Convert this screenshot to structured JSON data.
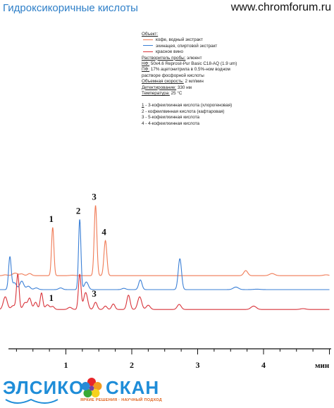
{
  "header": {
    "title": "Гидроксикоричные кислоты",
    "site": "www.chromforum.ru"
  },
  "info": {
    "object_label": "Объект:",
    "legend": [
      {
        "label": "кофе, водный экстракт",
        "color": "#f07a55"
      },
      {
        "label": "эхинацея, спиртовой экстракт",
        "color": "#3a7fd6"
      },
      {
        "label": "красное вино",
        "color": "#d8333a"
      }
    ],
    "solvent_label": "Растворитель пробы:",
    "solvent_value": " элюент",
    "column_label": "НФ:",
    "column_value": " 50x4.6 Reprosil-Pur Basic C18-AQ  (1.9 um)",
    "mobile_label": "ПФ:",
    "mobile_value": " 17% ацетонитрила в 0.5%-ном водном",
    "mobile_value2": "растворе фосфорной кислоты",
    "flow_label": "Объемная скорость:",
    "flow_value": " 2 мл/мин",
    "detect_label": "Детектирование:",
    "detect_value": " 330 нм",
    "temp_label": "Температура:",
    "temp_value": " 25 °С",
    "peaks": [
      {
        "num": "1",
        "text": " - 3-кофеилхинная кислота (хлорогеновая)"
      },
      {
        "num": "2",
        "text": " - кофеилвинная кислота (кафтаровая)"
      },
      {
        "num": "3",
        "text": " - 5-кофеилхинная кислота"
      },
      {
        "num": "4",
        "text": " - 4-кофеилхинная кислота"
      }
    ]
  },
  "chart_data": {
    "type": "line",
    "xlabel": "мин",
    "xlim": [
      0,
      5
    ],
    "x_ticks": [
      "1",
      "2",
      "3",
      "4"
    ],
    "peak_labels": [
      {
        "text": "1",
        "x": 0.8,
        "series": "кофе, водный экстракт"
      },
      {
        "text": "2",
        "x": 1.21,
        "series": "эхинацея, спиртовой экстракт"
      },
      {
        "text": "3",
        "x": 1.45,
        "series": "кофе, водный экстракт"
      },
      {
        "text": "4",
        "x": 1.6,
        "series": "кофе, водный экстракт"
      },
      {
        "text": "1",
        "x": 0.8,
        "series": "красное вино"
      },
      {
        "text": "3",
        "x": 1.45,
        "series": "красное вино"
      }
    ],
    "series": [
      {
        "name": "кофе, водный экстракт",
        "color": "#f07a55",
        "baseline": 3.3,
        "peaks": [
          [
            0.08,
            0.2,
            0.03
          ],
          [
            0.23,
            0.6,
            0.04
          ],
          [
            0.33,
            0.4,
            0.03
          ],
          [
            0.45,
            0.5,
            0.03
          ],
          [
            0.8,
            11.4,
            0.018
          ],
          [
            1.1,
            0.1,
            0.04
          ],
          [
            1.45,
            16.6,
            0.02
          ],
          [
            1.6,
            8.3,
            0.022
          ],
          [
            3.73,
            1.2,
            0.03
          ],
          [
            4.13,
            0.5,
            0.04
          ],
          [
            4.95,
            0.2,
            0.04
          ]
        ]
      },
      {
        "name": "эхинацея, спиртовой экстракт",
        "color": "#3a7fd6",
        "baseline": 0,
        "peaks": [
          [
            0.15,
            7.7,
            0.02
          ],
          [
            0.22,
            1.6,
            0.03
          ],
          [
            0.33,
            2.0,
            0.03
          ],
          [
            0.43,
            0.8,
            0.03
          ],
          [
            0.55,
            0.4,
            0.03
          ],
          [
            0.92,
            0.4,
            0.03
          ],
          [
            1.21,
            16.6,
            0.018
          ],
          [
            1.31,
            1.8,
            0.03
          ],
          [
            1.88,
            0.3,
            0.03
          ],
          [
            2.13,
            2.3,
            0.025
          ],
          [
            2.73,
            7.3,
            0.025
          ],
          [
            3.58,
            0.6,
            0.04
          ],
          [
            3.9,
            0.1,
            0.05
          ]
        ]
      },
      {
        "name": "красное вино",
        "color": "#d8333a",
        "baseline": -4.7,
        "peaks": [
          [
            0.08,
            3.0,
            0.03
          ],
          [
            0.2,
            0.9,
            0.03
          ],
          [
            0.27,
            8.3,
            0.02
          ],
          [
            0.38,
            1.6,
            0.03
          ],
          [
            0.45,
            2.6,
            0.025
          ],
          [
            0.54,
            1.7,
            0.025
          ],
          [
            0.63,
            3.9,
            0.02
          ],
          [
            0.72,
            1.1,
            0.03
          ],
          [
            0.8,
            0.7,
            0.025
          ],
          [
            1.06,
            0.5,
            0.03
          ],
          [
            1.21,
            8.3,
            0.02
          ],
          [
            1.3,
            4.0,
            0.03
          ],
          [
            1.45,
            1.7,
            0.025
          ],
          [
            1.6,
            0.8,
            0.025
          ],
          [
            1.72,
            1.3,
            0.025
          ],
          [
            1.95,
            3.4,
            0.025
          ],
          [
            2.12,
            3.0,
            0.03
          ],
          [
            2.25,
            1.0,
            0.03
          ],
          [
            2.72,
            1.2,
            0.03
          ],
          [
            3.85,
            0.8,
            0.04
          ],
          [
            4.6,
            0.2,
            0.04
          ]
        ]
      }
    ]
  },
  "logo": {
    "left_word": "ЭЛСИКО",
    "right_word": "СКАН",
    "tagline": "ЯРКИЕ РЕШЕНИЯ · НАУЧНЫЙ ПОДХОД"
  }
}
